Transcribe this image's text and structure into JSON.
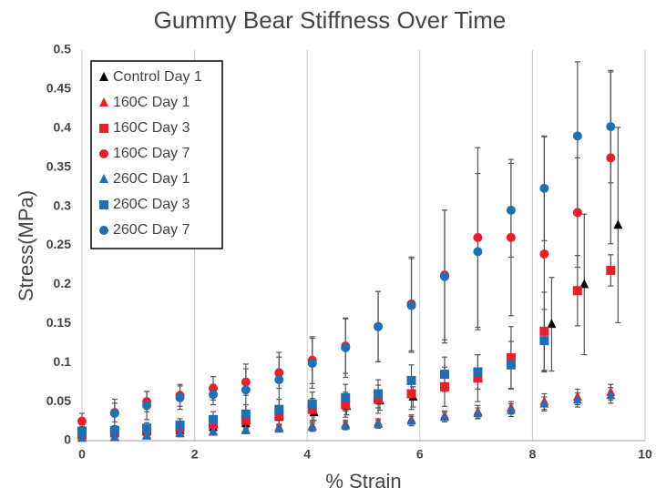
{
  "chart_data": {
    "type": "scatter",
    "title": "Gummy Bear Stiffness Over Time",
    "x_label": "% Strain",
    "y_label": "Stress(MPa)",
    "xlim": [
      0,
      10
    ],
    "xticks": [
      0,
      2,
      4,
      6,
      8,
      10
    ],
    "ylim": [
      0,
      0.5
    ],
    "yticks": [
      0,
      0.05,
      0.1,
      0.15,
      0.2,
      0.25,
      0.3,
      0.35,
      0.4,
      0.45,
      0.5
    ],
    "grid": "x",
    "legend": "upper left",
    "series": [
      {
        "name": "Control Day 1",
        "color": "#000000",
        "marker": "triangle",
        "x": [
          0,
          0.58,
          1.15,
          1.74,
          2.33,
          2.91,
          3.5,
          4.12,
          4.7,
          5.29,
          5.88,
          8.34,
          8.92,
          9.52
        ],
        "values": [
          0.008,
          0.009,
          0.011,
          0.013,
          0.017,
          0.022,
          0.03,
          0.036,
          0.044,
          0.051,
          0.056,
          0.149,
          0.2,
          0.276
        ],
        "errors": [
          0.005,
          0.005,
          0.005,
          0.006,
          0.007,
          0.008,
          0.009,
          0.01,
          0.011,
          0.012,
          0.013,
          0.06,
          0.09,
          0.125
        ]
      },
      {
        "name": "160C Day 1",
        "color": "#e8202a",
        "marker": "triangle",
        "x": [
          0,
          0.58,
          1.15,
          1.74,
          2.33,
          2.91,
          3.5,
          4.09,
          4.68,
          5.26,
          5.85,
          6.44,
          7.03,
          7.62,
          8.21,
          8.8,
          9.39
        ],
        "values": [
          0.005,
          0.005,
          0.007,
          0.01,
          0.012,
          0.014,
          0.017,
          0.019,
          0.021,
          0.023,
          0.027,
          0.032,
          0.037,
          0.042,
          0.05,
          0.056,
          0.062
        ],
        "errors": [
          0.003,
          0.003,
          0.003,
          0.004,
          0.004,
          0.004,
          0.004,
          0.005,
          0.005,
          0.005,
          0.006,
          0.006,
          0.008,
          0.008,
          0.01,
          0.01,
          0.01
        ]
      },
      {
        "name": "160C Day 3",
        "color": "#e8202a",
        "marker": "square",
        "x": [
          0,
          0.58,
          1.15,
          1.74,
          2.33,
          2.91,
          3.5,
          4.09,
          4.68,
          5.26,
          5.85,
          6.44,
          7.03,
          7.62,
          8.21,
          8.8,
          9.39
        ],
        "values": [
          0.008,
          0.01,
          0.013,
          0.017,
          0.021,
          0.026,
          0.032,
          0.04,
          0.046,
          0.053,
          0.06,
          0.069,
          0.08,
          0.106,
          0.14,
          0.192,
          0.218
        ],
        "errors": [
          0.005,
          0.006,
          0.006,
          0.007,
          0.008,
          0.01,
          0.012,
          0.014,
          0.016,
          0.018,
          0.02,
          0.025,
          0.03,
          0.04,
          0.05,
          0.045,
          0.02
        ]
      },
      {
        "name": "160C Day 7",
        "color": "#e8202a",
        "marker": "circle",
        "x": [
          0,
          0.58,
          1.15,
          1.74,
          2.33,
          2.91,
          3.5,
          4.09,
          4.68,
          5.26,
          5.85,
          6.44,
          7.03,
          7.62,
          8.21,
          8.8,
          9.39
        ],
        "values": [
          0.025,
          0.036,
          0.05,
          0.058,
          0.067,
          0.075,
          0.087,
          0.103,
          0.121,
          0.146,
          0.175,
          0.212,
          0.26,
          0.26,
          0.239,
          0.292,
          0.362
        ],
        "errors": [
          0.01,
          0.012,
          0.013,
          0.014,
          0.015,
          0.017,
          0.02,
          0.03,
          0.035,
          0.045,
          0.06,
          0.083,
          0.115,
          0.1,
          0.15,
          0.07,
          0.11
        ]
      },
      {
        "name": "260C Day 1",
        "color": "#1f6fb5",
        "marker": "triangle",
        "x": [
          0,
          0.58,
          1.15,
          1.74,
          2.33,
          2.91,
          3.5,
          4.09,
          4.68,
          5.26,
          5.85,
          6.44,
          7.03,
          7.62,
          8.21,
          8.8,
          9.39
        ],
        "values": [
          0.003,
          0.004,
          0.006,
          0.009,
          0.011,
          0.013,
          0.015,
          0.017,
          0.019,
          0.021,
          0.025,
          0.03,
          0.035,
          0.039,
          0.047,
          0.052,
          0.058
        ],
        "errors": [
          0.003,
          0.003,
          0.003,
          0.004,
          0.004,
          0.004,
          0.004,
          0.005,
          0.005,
          0.005,
          0.006,
          0.006,
          0.007,
          0.008,
          0.009,
          0.009,
          0.01
        ]
      },
      {
        "name": "260C Day 3",
        "color": "#1f6fb5",
        "marker": "square",
        "x": [
          0,
          0.58,
          1.15,
          1.74,
          2.33,
          2.91,
          3.5,
          4.09,
          4.68,
          5.26,
          5.85,
          6.44,
          7.03,
          7.62,
          8.21
        ],
        "values": [
          0.012,
          0.013,
          0.016,
          0.02,
          0.027,
          0.034,
          0.04,
          0.047,
          0.055,
          0.06,
          0.077,
          0.085,
          0.088,
          0.097,
          0.128
        ],
        "errors": [
          0.006,
          0.006,
          0.007,
          0.008,
          0.01,
          0.012,
          0.013,
          0.015,
          0.017,
          0.018,
          0.02,
          0.022,
          0.022,
          0.03,
          0.04
        ]
      },
      {
        "name": "260C Day 7",
        "color": "#1f6fb5",
        "marker": "circle",
        "x": [
          0,
          0.58,
          1.15,
          1.74,
          2.33,
          2.91,
          3.5,
          4.09,
          4.68,
          5.26,
          5.85,
          6.44,
          7.03,
          7.62,
          8.21,
          8.8,
          9.39
        ],
        "values": [
          0.01,
          0.035,
          0.045,
          0.055,
          0.059,
          0.065,
          0.078,
          0.099,
          0.119,
          0.146,
          0.173,
          0.21,
          0.242,
          0.295,
          0.323,
          0.39,
          0.402
        ],
        "errors": [
          0.01,
          0.018,
          0.018,
          0.015,
          0.013,
          0.033,
          0.035,
          0.032,
          0.038,
          0.045,
          0.06,
          0.085,
          0.1,
          0.06,
          0.067,
          0.095,
          0.072
        ]
      }
    ]
  }
}
